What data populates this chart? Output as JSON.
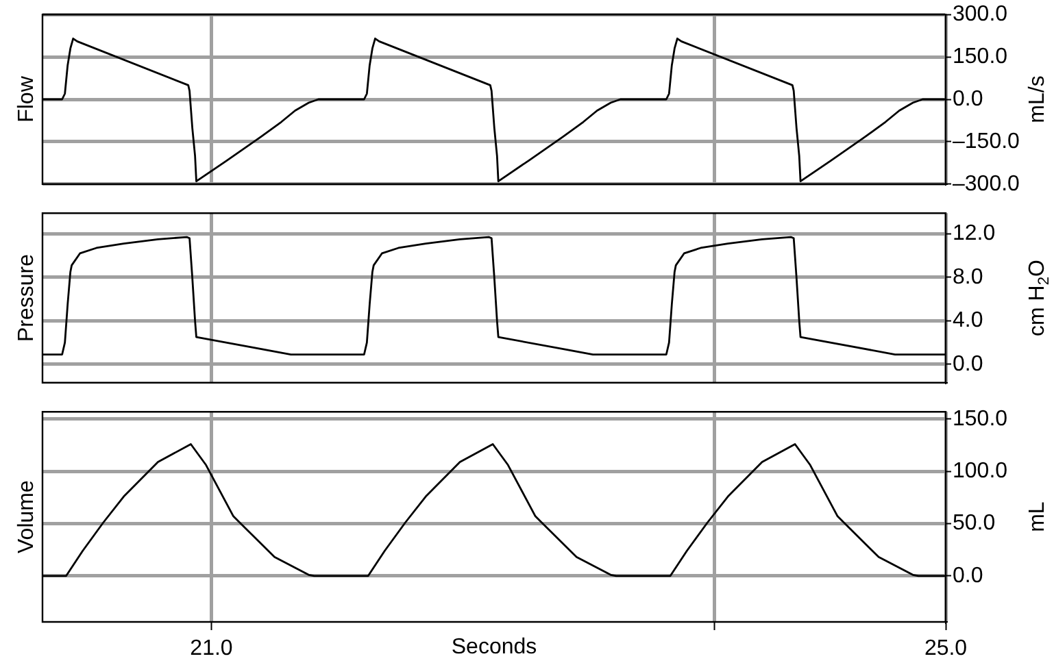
{
  "chart_data": [
    {
      "type": "line",
      "ylabel": "Flow",
      "y2label": "mL/s",
      "color": "#000000",
      "grid": true,
      "tick_labels": "y",
      "xlim": [
        20.08,
        25.0
      ],
      "xticks": [
        {
          "value": 21,
          "label": null
        },
        {
          "value": 23.74,
          "label": null
        },
        {
          "value": 25,
          "label": null
        }
      ],
      "ylim": [
        -300,
        300
      ],
      "yticks": [
        {
          "value": 300,
          "label": "300.0"
        },
        {
          "value": 150,
          "label": "150.0"
        },
        {
          "value": 0,
          "label": "0.0"
        },
        {
          "value": -150,
          "label": "–150.0"
        },
        {
          "value": -300,
          "label": "–300.0"
        }
      ],
      "x": [
        20.08,
        20.187,
        20.202,
        20.217,
        20.232,
        20.247,
        20.269,
        20.874,
        20.881,
        20.896,
        20.911,
        20.918,
        21.083,
        21.269,
        21.381,
        21.456,
        21.53,
        21.583,
        21.832,
        21.847,
        21.862,
        21.877,
        21.892,
        21.914,
        22.519,
        22.526,
        22.541,
        22.556,
        22.563,
        22.728,
        22.914,
        23.026,
        23.101,
        23.175,
        23.228,
        23.478,
        23.493,
        23.508,
        23.523,
        23.538,
        23.56,
        24.165,
        24.172,
        24.187,
        24.202,
        24.209,
        24.374,
        24.56,
        24.672,
        24.747,
        24.821,
        24.874,
        25.0
      ],
      "values": [
        0,
        0,
        20,
        120,
        180,
        215,
        205,
        50,
        30,
        -100,
        -200,
        -290,
        -217,
        -133,
        -80,
        -40,
        -12,
        0,
        0,
        20,
        120,
        180,
        215,
        205,
        50,
        30,
        -100,
        -200,
        -290,
        -217,
        -133,
        -80,
        -40,
        -12,
        0,
        0,
        20,
        120,
        180,
        215,
        205,
        50,
        30,
        -100,
        -200,
        -290,
        -217,
        -133,
        -80,
        -40,
        -12,
        0,
        0
      ]
    },
    {
      "type": "line",
      "ylabel": "Pressure",
      "y2label": "cm H$_{2}$O",
      "color": "#000000",
      "grid": true,
      "tick_labels": "y",
      "xlim": [
        20.08,
        25.0
      ],
      "xticks": [
        {
          "value": 21,
          "label": null
        },
        {
          "value": 23.74,
          "label": null
        },
        {
          "value": 25,
          "label": null
        }
      ],
      "ylim": [
        -1.7,
        13.9
      ],
      "yticks": [
        {
          "value": 12,
          "label": "12.0"
        },
        {
          "value": 8,
          "label": "8.0"
        },
        {
          "value": 4,
          "label": "4.0"
        },
        {
          "value": 0,
          "label": "0.0"
        }
      ],
      "x": [
        20.08,
        20.187,
        20.202,
        20.217,
        20.232,
        20.239,
        20.284,
        20.374,
        20.523,
        20.709,
        20.866,
        20.881,
        20.896,
        20.911,
        20.918,
        21.433,
        21.832,
        21.847,
        21.862,
        21.877,
        21.884,
        21.929,
        22.019,
        22.168,
        22.354,
        22.511,
        22.526,
        22.541,
        22.556,
        22.563,
        23.078,
        23.478,
        23.493,
        23.508,
        23.523,
        23.53,
        23.575,
        23.665,
        23.814,
        24.0,
        24.157,
        24.172,
        24.187,
        24.202,
        24.209,
        24.724,
        25.0
      ],
      "values": [
        0.9,
        0.9,
        2.0,
        5.5,
        8.5,
        9.1,
        10.2,
        10.7,
        11.1,
        11.5,
        11.7,
        11.6,
        8,
        4,
        2.5,
        0.9,
        0.9,
        2.0,
        5.5,
        8.5,
        9.1,
        10.2,
        10.7,
        11.1,
        11.5,
        11.7,
        11.6,
        8,
        4,
        2.5,
        0.9,
        0.9,
        2.0,
        5.5,
        8.5,
        9.1,
        10.2,
        10.7,
        11.1,
        11.5,
        11.7,
        11.6,
        8,
        4,
        2.5,
        0.9,
        0.9
      ]
    },
    {
      "type": "line",
      "ylabel": "Volume",
      "y2label": "mL",
      "xlabel": "Seconds",
      "color": "#000000",
      "grid": true,
      "xlim": [
        20.08,
        25.0
      ],
      "xticks": [
        {
          "value": 21,
          "label": "21.0"
        },
        {
          "value": 23.74,
          "label": null
        },
        {
          "value": 25,
          "label": "25.0"
        }
      ],
      "ylim": [
        -44,
        157
      ],
      "yticks": [
        {
          "value": 150,
          "label": "150.0"
        },
        {
          "value": 100,
          "label": "100.0"
        },
        {
          "value": 50,
          "label": "50.0"
        },
        {
          "value": 0,
          "label": "0.0"
        }
      ],
      "x": [
        20.08,
        20.209,
        20.299,
        20.411,
        20.523,
        20.709,
        20.888,
        20.971,
        21.12,
        21.344,
        21.53,
        21.56,
        21.854,
        21.944,
        22.056,
        22.168,
        22.354,
        22.533,
        22.616,
        22.765,
        22.989,
        23.175,
        23.205,
        23.5,
        23.59,
        23.702,
        23.814,
        24.0,
        24.179,
        24.262,
        24.411,
        24.635,
        24.821,
        24.851,
        25.0
      ],
      "values": [
        0,
        0,
        24,
        51,
        76,
        109,
        126,
        106,
        57,
        18,
        1,
        0,
        0,
        24,
        51,
        76,
        109,
        126,
        106,
        57,
        18,
        1,
        0,
        0,
        24,
        51,
        76,
        109,
        126,
        106,
        57,
        18,
        1,
        0,
        0
      ]
    }
  ]
}
